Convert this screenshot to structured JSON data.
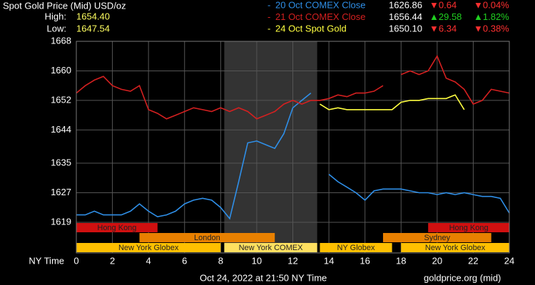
{
  "header": {
    "title": "Spot Gold Price (Mid) USD/oz",
    "high_label": "High:",
    "high": "1654.40",
    "low_label": "Low:",
    "low": "1647.54"
  },
  "chart_data": {
    "type": "line",
    "x_label": "NY Time",
    "x": [
      0,
      0.5,
      1,
      1.5,
      2,
      2.5,
      3,
      3.5,
      4,
      4.5,
      5,
      5.5,
      6,
      6.5,
      7,
      7.5,
      8,
      8.5,
      9,
      9.5,
      10,
      10.5,
      11,
      11.5,
      12,
      12.5,
      13,
      13.5,
      14,
      14.5,
      15,
      15.5,
      16,
      16.5,
      17,
      17.5,
      18,
      18.5,
      19,
      19.5,
      20,
      20.5,
      21,
      21.5,
      22,
      22.5,
      23,
      23.5,
      24
    ],
    "series": [
      {
        "name": "20 Oct COMEX Close",
        "color": "#2f8fe8",
        "close": "1626.86",
        "change": "▼0.64",
        "change_pct": "▼0.04%",
        "change_color": "#ff3030",
        "values": [
          1621,
          1621,
          1622,
          1621,
          1621,
          1621,
          1622,
          1624,
          1622,
          1620.5,
          1621,
          1622,
          1624,
          1625,
          1625.5,
          1625,
          1623,
          1620,
          1630,
          1640.5,
          1641,
          1640,
          1639,
          1643,
          1650,
          1652,
          1654,
          null,
          1632,
          1630,
          1628.5,
          1627,
          1625,
          1627.5,
          1628,
          1628,
          1628,
          1627.5,
          1627,
          1627,
          1626.5,
          1627,
          1626.5,
          1627,
          1626.5,
          1626,
          1626,
          1625.5,
          1621.5
        ]
      },
      {
        "name": "21 Oct COMEX Close",
        "color": "#d42020",
        "close": "1656.44",
        "change": "▲29.58",
        "change_pct": "▲1.82%",
        "change_color": "#20d020",
        "values": [
          1654,
          1656,
          1657.5,
          1658.5,
          1656,
          1655,
          1654.5,
          1656,
          1649.5,
          1648.5,
          1647,
          1648,
          1649,
          1650,
          1649.5,
          1649,
          1650,
          1649,
          1650,
          1649,
          1647,
          1648,
          1649,
          1651,
          1652,
          1651,
          1652,
          1652,
          1652.5,
          1653.5,
          1653,
          1654,
          1654,
          1654.5,
          1656,
          null,
          1659,
          1660,
          1659,
          1660,
          1664,
          1658,
          1657,
          1655,
          1651,
          1652,
          1655,
          1654.5,
          1654
        ]
      },
      {
        "name": "24 Oct Spot Gold",
        "color": "#ffff40",
        "close": "1650.10",
        "change": "▼6.34",
        "change_pct": "▼0.38%",
        "change_color": "#ff3030",
        "values": [
          null,
          null,
          null,
          null,
          null,
          null,
          null,
          null,
          null,
          null,
          null,
          null,
          null,
          null,
          null,
          null,
          null,
          null,
          null,
          null,
          null,
          null,
          null,
          null,
          null,
          null,
          null,
          1651,
          1649.5,
          1650,
          1649.5,
          1649.5,
          1649.5,
          1649.5,
          1649.5,
          1649.5,
          1651.5,
          1652,
          1652,
          1652.5,
          1652.5,
          1652.5,
          1653.5,
          1649.5,
          null,
          null,
          null,
          null,
          null
        ]
      }
    ],
    "xlim": [
      0,
      24
    ],
    "xticks": [
      0,
      2,
      4,
      6,
      8,
      10,
      12,
      14,
      16,
      18,
      20,
      22,
      24
    ],
    "ylim": [
      1610.7,
      1668
    ],
    "yticks": [
      1668,
      1660,
      1652,
      1644,
      1635,
      1627,
      1619
    ],
    "grid": true,
    "highlight": [
      8.2,
      13.35
    ],
    "sessions": [
      [
        {
          "name": "Hong Kong",
          "start": 0,
          "end": 4.5,
          "color": "#d01010"
        },
        {
          "name": "Hong Kong",
          "start": 19.5,
          "end": 24,
          "color": "#d01010"
        }
      ],
      [
        {
          "name": "London",
          "start": 3.5,
          "end": 11,
          "color": "#e88000"
        },
        {
          "name": "Sydney",
          "start": 17,
          "end": 23,
          "color": "#e88000"
        }
      ],
      [
        {
          "name": "New York Globex",
          "start": 0,
          "end": 8,
          "color": "#ffc000"
        },
        {
          "name": "New York COMEX",
          "start": 8.2,
          "end": 13.35,
          "color": "#ffe060"
        },
        {
          "name": "NY Globex",
          "start": 13.5,
          "end": 17.5,
          "color": "#ffc000"
        },
        {
          "name": "New York Globex",
          "start": 18,
          "end": 24,
          "color": "#ffc000"
        }
      ]
    ]
  },
  "footer": {
    "timestamp": "Oct 24, 2022 at 21:50 NY Time",
    "source": "goldprice.org (mid)"
  }
}
